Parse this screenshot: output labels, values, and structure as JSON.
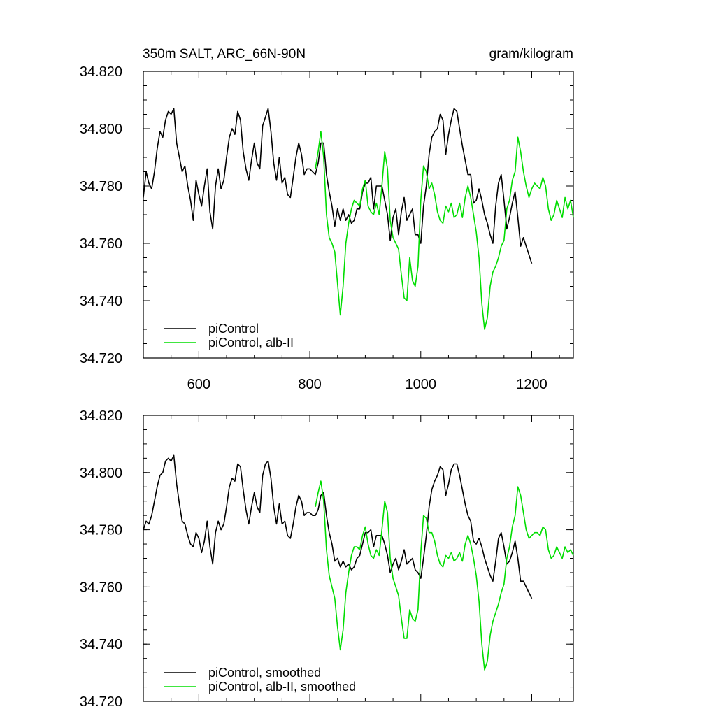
{
  "chart_data": [
    {
      "type": "line",
      "title": "350m SALT, ARC_66N-90N",
      "units": "gram/kilogram",
      "xlim": [
        500,
        1275
      ],
      "ylim": [
        34.72,
        34.82
      ],
      "xticks": [
        600,
        800,
        1000,
        1200
      ],
      "xtick_labels": [
        "600",
        "800",
        "1000",
        "1200"
      ],
      "yticks": [
        34.72,
        34.74,
        34.76,
        34.78,
        34.8,
        34.82
      ],
      "ytick_labels": [
        "34.720",
        "34.740",
        "34.760",
        "34.780",
        "34.800",
        "34.820"
      ],
      "legend_position": "bottom-left",
      "series": [
        {
          "name": "piControl",
          "color": "#000000",
          "x": [
            500,
            505,
            510,
            515,
            520,
            525,
            530,
            535,
            540,
            545,
            550,
            555,
            560,
            565,
            570,
            575,
            580,
            585,
            590,
            595,
            600,
            605,
            610,
            615,
            620,
            625,
            630,
            635,
            640,
            645,
            650,
            655,
            660,
            665,
            670,
            675,
            680,
            685,
            690,
            695,
            700,
            705,
            710,
            715,
            720,
            725,
            730,
            735,
            740,
            745,
            750,
            755,
            760,
            765,
            770,
            775,
            780,
            785,
            790,
            795,
            800,
            805,
            810,
            815,
            820,
            825,
            830,
            835,
            840,
            845,
            850,
            855,
            860,
            865,
            870,
            875,
            880,
            885,
            890,
            895,
            900,
            905,
            910,
            915,
            920,
            925,
            930,
            935,
            940,
            945,
            950,
            955,
            960,
            965,
            970,
            975,
            980,
            985,
            990,
            995,
            1000,
            1005,
            1010,
            1015,
            1020,
            1025,
            1030,
            1035,
            1040,
            1045,
            1050,
            1055,
            1060,
            1065,
            1070,
            1075,
            1080,
            1085,
            1090,
            1095,
            1100,
            1105,
            1110,
            1115,
            1120,
            1125,
            1130,
            1135,
            1140,
            1145,
            1150,
            1155,
            1160,
            1165,
            1170,
            1175,
            1180,
            1185,
            1190,
            1195,
            1200
          ],
          "y": [
            34.776,
            34.785,
            34.781,
            34.779,
            34.785,
            34.793,
            34.799,
            34.797,
            34.803,
            34.806,
            34.805,
            34.807,
            34.795,
            34.79,
            34.785,
            34.787,
            34.78,
            34.775,
            34.768,
            34.782,
            34.777,
            34.773,
            34.78,
            34.786,
            34.771,
            34.765,
            34.78,
            34.786,
            34.779,
            34.782,
            34.79,
            34.797,
            34.8,
            34.798,
            34.806,
            34.803,
            34.792,
            34.786,
            34.782,
            34.789,
            34.795,
            34.788,
            34.786,
            34.801,
            34.804,
            34.807,
            34.799,
            34.788,
            34.782,
            34.79,
            34.781,
            34.783,
            34.777,
            34.776,
            34.783,
            34.79,
            34.795,
            34.791,
            34.784,
            34.786,
            34.786,
            34.785,
            34.784,
            34.788,
            34.795,
            34.795,
            34.784,
            34.778,
            34.773,
            34.766,
            34.772,
            34.768,
            34.772,
            34.768,
            34.77,
            34.767,
            34.768,
            34.772,
            34.772,
            34.778,
            34.781,
            34.781,
            34.783,
            34.772,
            34.78,
            34.78,
            34.78,
            34.775,
            34.77,
            34.761,
            34.769,
            34.772,
            34.763,
            34.771,
            34.776,
            34.768,
            34.77,
            34.772,
            34.763,
            34.763,
            34.76,
            34.773,
            34.78,
            34.791,
            34.797,
            34.799,
            34.8,
            34.805,
            34.803,
            34.791,
            34.798,
            34.803,
            34.807,
            34.806,
            34.8,
            34.794,
            34.789,
            34.784,
            34.784,
            34.774,
            34.775,
            34.779,
            34.775,
            34.77,
            34.767,
            34.763,
            34.76,
            34.773,
            34.781,
            34.784,
            34.775,
            34.765,
            34.769,
            34.774,
            34.778,
            34.769,
            34.759,
            34.762,
            34.759,
            34.756,
            34.753
          ]
        },
        {
          "name": "piControl, alb-II",
          "color": "#00dd00",
          "x": [
            810,
            815,
            820,
            825,
            830,
            835,
            840,
            845,
            850,
            855,
            860,
            865,
            870,
            875,
            880,
            885,
            890,
            895,
            900,
            905,
            910,
            915,
            920,
            925,
            930,
            935,
            940,
            945,
            950,
            955,
            960,
            965,
            970,
            975,
            980,
            985,
            990,
            995,
            1000,
            1005,
            1010,
            1015,
            1020,
            1025,
            1030,
            1035,
            1040,
            1045,
            1050,
            1055,
            1060,
            1065,
            1070,
            1075,
            1080,
            1085,
            1090,
            1095,
            1100,
            1105,
            1110,
            1115,
            1120,
            1125,
            1130,
            1135,
            1140,
            1145,
            1150,
            1155,
            1160,
            1165,
            1170,
            1175,
            1180,
            1185,
            1190,
            1195,
            1200,
            1205,
            1210,
            1215,
            1220,
            1225,
            1230,
            1235,
            1240,
            1245,
            1250,
            1255,
            1260,
            1265,
            1270,
            1275
          ],
          "y": [
            34.786,
            34.792,
            34.799,
            34.79,
            34.77,
            34.762,
            34.76,
            34.757,
            34.746,
            34.735,
            34.745,
            34.76,
            34.767,
            34.772,
            34.775,
            34.774,
            34.773,
            34.779,
            34.782,
            34.773,
            34.771,
            34.77,
            34.774,
            34.77,
            34.78,
            34.792,
            34.786,
            34.768,
            34.762,
            34.76,
            34.758,
            34.749,
            34.741,
            34.74,
            34.755,
            34.747,
            34.745,
            34.752,
            34.775,
            34.787,
            34.785,
            34.779,
            34.781,
            34.777,
            34.771,
            34.768,
            34.767,
            34.773,
            34.771,
            34.774,
            34.769,
            34.77,
            34.774,
            34.769,
            34.776,
            34.78,
            34.776,
            34.77,
            34.764,
            34.755,
            34.739,
            34.73,
            34.734,
            34.745,
            34.75,
            34.752,
            34.755,
            34.759,
            34.761,
            34.772,
            34.775,
            34.782,
            34.785,
            34.797,
            34.792,
            34.785,
            34.78,
            34.776,
            34.779,
            34.781,
            34.78,
            34.779,
            34.783,
            34.78,
            34.772,
            34.768,
            34.77,
            34.775,
            34.772,
            34.769,
            34.776,
            34.772,
            34.775,
            34.769
          ]
        }
      ]
    },
    {
      "type": "line",
      "xlim": [
        500,
        1275
      ],
      "ylim": [
        34.72,
        34.82
      ],
      "xticks": [
        600,
        800,
        1000,
        1200
      ],
      "yticks": [
        34.72,
        34.74,
        34.76,
        34.78,
        34.8,
        34.82
      ],
      "ytick_labels": [
        "34.720",
        "34.740",
        "34.760",
        "34.780",
        "34.800",
        "34.820"
      ],
      "legend_position": "bottom-left",
      "series": [
        {
          "name": "piControl, smoothed",
          "color": "#000000",
          "x": [
            500,
            505,
            510,
            515,
            520,
            525,
            530,
            535,
            540,
            545,
            550,
            555,
            560,
            565,
            570,
            575,
            580,
            585,
            590,
            595,
            600,
            605,
            610,
            615,
            620,
            625,
            630,
            635,
            640,
            645,
            650,
            655,
            660,
            665,
            670,
            675,
            680,
            685,
            690,
            695,
            700,
            705,
            710,
            715,
            720,
            725,
            730,
            735,
            740,
            745,
            750,
            755,
            760,
            765,
            770,
            775,
            780,
            785,
            790,
            795,
            800,
            805,
            810,
            815,
            820,
            825,
            830,
            835,
            840,
            845,
            850,
            855,
            860,
            865,
            870,
            875,
            880,
            885,
            890,
            895,
            900,
            905,
            910,
            915,
            920,
            925,
            930,
            935,
            940,
            945,
            950,
            955,
            960,
            965,
            970,
            975,
            980,
            985,
            990,
            995,
            1000,
            1005,
            1010,
            1015,
            1020,
            1025,
            1030,
            1035,
            1040,
            1045,
            1050,
            1055,
            1060,
            1065,
            1070,
            1075,
            1080,
            1085,
            1090,
            1095,
            1100,
            1105,
            1110,
            1115,
            1120,
            1125,
            1130,
            1135,
            1140,
            1145,
            1150,
            1155,
            1160,
            1165,
            1170,
            1175,
            1180,
            1185,
            1190,
            1195,
            1200
          ],
          "y": [
            34.78,
            34.783,
            34.782,
            34.785,
            34.79,
            34.795,
            34.799,
            34.8,
            34.804,
            34.805,
            34.804,
            34.806,
            34.796,
            34.789,
            34.783,
            34.782,
            34.778,
            34.775,
            34.774,
            34.779,
            34.777,
            34.772,
            34.776,
            34.783,
            34.774,
            34.768,
            34.779,
            34.783,
            34.78,
            34.782,
            34.788,
            34.795,
            34.798,
            34.797,
            34.803,
            34.802,
            34.794,
            34.787,
            34.782,
            34.788,
            34.793,
            34.788,
            34.786,
            34.799,
            34.803,
            34.804,
            34.798,
            34.788,
            34.782,
            34.789,
            34.782,
            34.783,
            34.778,
            34.777,
            34.782,
            34.788,
            34.792,
            34.79,
            34.785,
            34.786,
            34.786,
            34.785,
            34.785,
            34.787,
            34.792,
            34.793,
            34.785,
            34.779,
            34.775,
            34.769,
            34.77,
            34.767,
            34.769,
            34.767,
            34.768,
            34.766,
            34.767,
            34.77,
            34.771,
            34.775,
            34.779,
            34.779,
            34.78,
            34.774,
            34.778,
            34.778,
            34.778,
            34.775,
            34.771,
            34.765,
            34.768,
            34.77,
            34.766,
            34.769,
            34.773,
            34.768,
            34.769,
            34.77,
            34.766,
            34.765,
            34.763,
            34.77,
            34.778,
            34.788,
            34.794,
            34.797,
            34.799,
            34.802,
            34.801,
            34.792,
            34.796,
            34.801,
            34.803,
            34.803,
            34.799,
            34.794,
            34.789,
            34.785,
            34.783,
            34.776,
            34.775,
            34.777,
            34.774,
            34.77,
            34.767,
            34.764,
            34.762,
            34.769,
            34.777,
            34.779,
            34.774,
            34.768,
            34.769,
            34.772,
            34.776,
            34.77,
            34.762,
            34.762,
            34.76,
            34.758,
            34.756
          ]
        },
        {
          "name": "piControl, alb-II, smoothed",
          "color": "#00dd00",
          "x": [
            810,
            815,
            820,
            825,
            830,
            835,
            840,
            845,
            850,
            855,
            860,
            865,
            870,
            875,
            880,
            885,
            890,
            895,
            900,
            905,
            910,
            915,
            920,
            925,
            930,
            935,
            940,
            945,
            950,
            955,
            960,
            965,
            970,
            975,
            980,
            985,
            990,
            995,
            1000,
            1005,
            1010,
            1015,
            1020,
            1025,
            1030,
            1035,
            1040,
            1045,
            1050,
            1055,
            1060,
            1065,
            1070,
            1075,
            1080,
            1085,
            1090,
            1095,
            1100,
            1105,
            1110,
            1115,
            1120,
            1125,
            1130,
            1135,
            1140,
            1145,
            1150,
            1155,
            1160,
            1165,
            1170,
            1175,
            1180,
            1185,
            1190,
            1195,
            1200,
            1205,
            1210,
            1215,
            1220,
            1225,
            1230,
            1235,
            1240,
            1245,
            1250,
            1255,
            1260,
            1265,
            1270,
            1275
          ],
          "y": [
            34.788,
            34.793,
            34.797,
            34.79,
            34.773,
            34.764,
            34.76,
            34.756,
            34.746,
            34.738,
            34.745,
            34.758,
            34.765,
            34.771,
            34.774,
            34.774,
            34.773,
            34.778,
            34.781,
            34.775,
            34.771,
            34.77,
            34.773,
            34.771,
            34.78,
            34.79,
            34.786,
            34.77,
            34.763,
            34.76,
            34.757,
            34.749,
            34.742,
            34.742,
            34.752,
            34.749,
            34.748,
            34.752,
            34.772,
            34.785,
            34.784,
            34.779,
            34.779,
            34.776,
            34.771,
            34.768,
            34.767,
            34.771,
            34.77,
            34.772,
            34.769,
            34.77,
            34.772,
            34.769,
            34.775,
            34.778,
            34.775,
            34.77,
            34.764,
            34.755,
            34.74,
            34.731,
            34.734,
            34.743,
            34.748,
            34.751,
            34.754,
            34.758,
            34.761,
            34.77,
            34.774,
            34.781,
            34.785,
            34.795,
            34.792,
            34.786,
            34.78,
            34.777,
            34.778,
            34.779,
            34.779,
            34.778,
            34.781,
            34.78,
            34.773,
            34.77,
            34.771,
            34.774,
            34.772,
            34.77,
            34.774,
            34.772,
            34.773,
            34.771
          ]
        }
      ]
    }
  ]
}
